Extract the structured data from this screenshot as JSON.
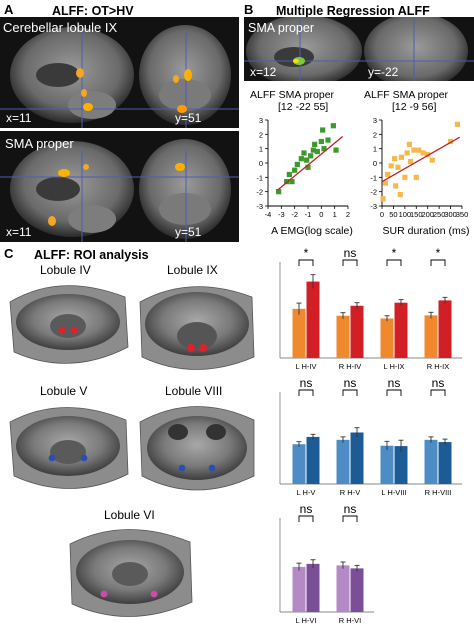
{
  "panel_a": {
    "letter": "A",
    "title": "ALFF: OT>HV",
    "top": {
      "label": "Cerebellar lobule IX",
      "x_coord": "x=11",
      "y_coord": "y=51"
    },
    "bottom": {
      "label": "SMA proper",
      "x_coord": "x=11",
      "y_coord": "y=51"
    }
  },
  "panel_b": {
    "letter": "B",
    "title": "Multiple Regression ALFF",
    "image_label": "SMA proper",
    "x_coord": "x=12",
    "y_coord": "y=-22"
  },
  "panel_c": {
    "letter": "C",
    "title": "ALFF: ROI analysis",
    "roi_labels": [
      "Lobule IV",
      "Lobule IX",
      "Lobule V",
      "Lobule VIII",
      "Lobule VI"
    ]
  },
  "colors": {
    "green": "#3a9a2a",
    "yellow": "#f7b84a",
    "fit_line": "#c0202a",
    "orange": "#f0882e",
    "red": "#d21f26",
    "light_blue": "#4e8cc6",
    "dark_blue": "#1d5b96",
    "light_purple": "#b48ac6",
    "dark_purple": "#7b4f97"
  },
  "chart_data": [
    {
      "type": "scatter",
      "title": "ALFF SMA proper",
      "subtitle": "[12 -22 55]",
      "xlabel": "A EMG(log scale)",
      "xlim": [
        -4,
        2
      ],
      "ylim": [
        -3,
        3
      ],
      "xticks": [
        -4,
        -3,
        -2,
        -1,
        0,
        1,
        2
      ],
      "yticks": [
        -3,
        -2,
        -1,
        0,
        1,
        2,
        3
      ],
      "x": [
        -3.2,
        -2.6,
        -2.4,
        -2.2,
        -2.0,
        -1.8,
        -1.5,
        -1.3,
        -1.1,
        -1.0,
        -0.8,
        -0.6,
        -0.5,
        -0.3,
        0.0,
        0.1,
        0.2,
        0.5,
        0.9,
        1.1
      ],
      "y": [
        -2.0,
        -1.3,
        -0.8,
        -1.3,
        -0.5,
        -0.1,
        0.3,
        0.7,
        0.2,
        -0.3,
        0.5,
        0.9,
        1.3,
        0.8,
        1.5,
        2.3,
        1.0,
        1.6,
        2.6,
        0.9
      ],
      "fit": {
        "x": [
          -3.3,
          1.6
        ],
        "y": [
          -1.9,
          1.85
        ]
      }
    },
    {
      "type": "scatter",
      "title": "ALFF SMA proper",
      "subtitle": "[12 -9 56]",
      "xlabel": "SUR duration (ms)",
      "xlim": [
        0,
        350
      ],
      "ylim": [
        -3,
        3
      ],
      "xticks": [
        0,
        50,
        100,
        150,
        200,
        250,
        300,
        350
      ],
      "yticks": [
        -3,
        -2,
        -1,
        0,
        1,
        2,
        3
      ],
      "x": [
        5,
        15,
        25,
        40,
        55,
        60,
        70,
        80,
        85,
        100,
        110,
        120,
        125,
        140,
        150,
        160,
        180,
        200,
        220,
        300,
        330
      ],
      "y": [
        -2.5,
        -1.4,
        -0.8,
        -0.2,
        0.3,
        -1.6,
        -0.3,
        -2.2,
        0.4,
        -1.0,
        0.7,
        1.3,
        0.1,
        0.9,
        -1.0,
        0.9,
        0.7,
        0.6,
        0.2,
        1.5,
        2.7
      ],
      "fit": {
        "x": [
          0,
          340
        ],
        "y": [
          -1.3,
          1.8
        ]
      }
    },
    {
      "type": "bar",
      "categories": [
        "L H-IV",
        "R H-IV",
        "L H-IX",
        "R H-IX"
      ],
      "series": [
        {
          "values": [
            12.8,
            11.0,
            10.3,
            11.1
          ]
        },
        {
          "values": [
            19.9,
            13.6,
            14.4,
            15.0
          ]
        }
      ],
      "errors": [
        [
          1.5,
          0.8,
          0.7,
          0.8
        ],
        [
          1.8,
          0.8,
          0.8,
          0.8
        ]
      ],
      "significance": [
        "*",
        "ns",
        "*",
        "*"
      ],
      "ylim": [
        0,
        25
      ],
      "series_colors": [
        "#f0882e",
        "#d21f26"
      ]
    },
    {
      "type": "bar",
      "categories": [
        "L H-V",
        "R H-V",
        "L H-VIII",
        "R H-VIII"
      ],
      "series": [
        {
          "values": [
            10.8,
            12.0,
            10.4,
            12.0
          ]
        },
        {
          "values": [
            12.8,
            14.0,
            10.3,
            11.4
          ]
        }
      ],
      "errors": [
        [
          0.7,
          0.8,
          1.2,
          0.8
        ],
        [
          0.7,
          1.3,
          1.6,
          0.8
        ]
      ],
      "significance": [
        "ns",
        "ns",
        "ns",
        "ns"
      ],
      "ylim": [
        0,
        25
      ],
      "series_colors": [
        "#4e8cc6",
        "#1d5b96"
      ]
    },
    {
      "type": "bar",
      "categories": [
        "L H-VI",
        "R H-VI"
      ],
      "series": [
        {
          "values": [
            12.0,
            12.4
          ]
        },
        {
          "values": [
            12.8,
            11.6
          ]
        }
      ],
      "errors": [
        [
          1.0,
          0.9
        ],
        [
          1.1,
          0.8
        ]
      ],
      "significance": [
        "ns",
        "ns"
      ],
      "ylim": [
        0,
        25
      ],
      "series_colors": [
        "#b48ac6",
        "#7b4f97"
      ]
    }
  ]
}
